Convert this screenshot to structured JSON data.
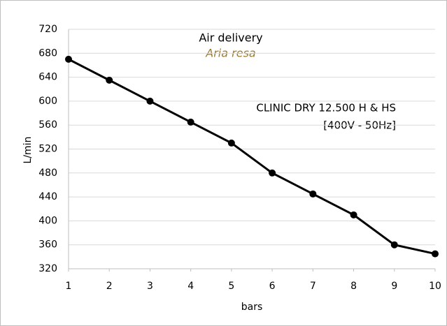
{
  "chart_data": {
    "type": "line",
    "title": "Air delivery",
    "subtitle": "Aria resa",
    "annotations": [
      "CLINIC DRY 12.500 H & HS",
      "[400V - 50Hz]"
    ],
    "x_label": "bars",
    "y_label": "L/min",
    "x": [
      1,
      2,
      3,
      4,
      5,
      6,
      7,
      8,
      9,
      10
    ],
    "series": [
      {
        "name": "Air delivery",
        "color": "#000000",
        "values": [
          670,
          635,
          600,
          565,
          530,
          480,
          445,
          410,
          360,
          345
        ]
      }
    ],
    "xlim": [
      1,
      10
    ],
    "xticks": [
      1,
      2,
      3,
      4,
      5,
      6,
      7,
      8,
      9,
      10
    ],
    "ylim": [
      320,
      720
    ],
    "yticks": [
      320,
      360,
      400,
      440,
      480,
      520,
      560,
      600,
      640,
      680,
      720
    ],
    "grid": true,
    "subtitle_color": "#9c7a2e"
  }
}
